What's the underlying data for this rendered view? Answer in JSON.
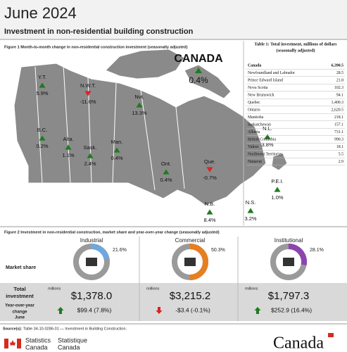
{
  "header": {
    "title": "June 2024",
    "subtitle": "Investment in non-residential building construction"
  },
  "figure1": {
    "caption": "Figure 1  Month-to-month change in non-residential construction investment (seasonally adjusted)",
    "canada": {
      "label": "CANADA",
      "change": "0.4%"
    },
    "regions": [
      {
        "label": "Y.T.",
        "change": "5.9%"
      },
      {
        "label": "N.W.T.",
        "change": "-11.6%"
      },
      {
        "label": "Nvt.",
        "change": "13.3%"
      },
      {
        "label": "N.L.",
        "change": "3.8%"
      },
      {
        "label": "B.C.",
        "change": "0.2%"
      },
      {
        "label": "Alta.",
        "change": "1.1%"
      },
      {
        "label": "Sask.",
        "change": "2.4%"
      },
      {
        "label": "Man.",
        "change": "0.4%"
      },
      {
        "label": "Ont.",
        "change": "0.4%"
      },
      {
        "label": "Que.",
        "change": "-0.7%"
      },
      {
        "label": "P.E.I.",
        "change": "1.0%"
      },
      {
        "label": "N.S.",
        "change": "3.2%"
      },
      {
        "label": "N.B.",
        "change": "8.4%"
      }
    ]
  },
  "table1": {
    "title": [
      "Table 1: Total investment, millions of dollars",
      "(seasonally adjusted)"
    ],
    "rows": [
      [
        "Canada",
        "6,390.5"
      ],
      [
        "Newfoundland and Labrador",
        "28.5"
      ],
      [
        "Prince Edward Island",
        "21.8"
      ],
      [
        "Nova Scotia",
        "102.3"
      ],
      [
        "New Brunswick",
        "94.1"
      ],
      [
        "Quebec",
        "1,400.3"
      ],
      [
        "Ontario",
        "2,620.5"
      ],
      [
        "Manitoba",
        "218.1"
      ],
      [
        "Saskatchewan",
        "157.1"
      ],
      [
        "Alberta",
        "731.1"
      ],
      [
        "British Columbia",
        "990.3"
      ],
      [
        "Yukon",
        "18.1"
      ],
      [
        "Northwest Territories",
        "5.5"
      ],
      [
        "Nunavut",
        "2.9"
      ]
    ]
  },
  "figure2": {
    "caption": "Figure 2 Investment in non-residential construction, market share and year-over-year change (seasonally adjusted)",
    "row_labels": {
      "market_share": "Market share",
      "total": [
        "Total",
        "investment"
      ],
      "yoy": [
        "Year-over-year",
        "change"
      ],
      "month": "June"
    },
    "unit": "millions",
    "sectors": [
      {
        "name": "Industrial",
        "share": "21.6%",
        "total": "$1,378.0",
        "change": "$99.4 (7.8%)",
        "color": "#6fa8dc"
      },
      {
        "name": "Commercial",
        "share": "50.3%",
        "total": "$3,215.2",
        "change": "-$3.4 (-0.1%)",
        "color": "#e67e22"
      },
      {
        "name": "Institutional",
        "share": "28.1%",
        "total": "$1,797.3",
        "change": "$252.9 (16.4%)",
        "color": "#8e44ad"
      }
    ]
  },
  "source": {
    "label": "Source(s):",
    "text": "Table 34-10-0286-01 — Investment in Building Construction."
  },
  "footer": {
    "agency_en": [
      "Statistics",
      "Canada"
    ],
    "agency_fr": [
      "Statistique",
      "Canada"
    ],
    "wordmark": "Canada"
  }
}
